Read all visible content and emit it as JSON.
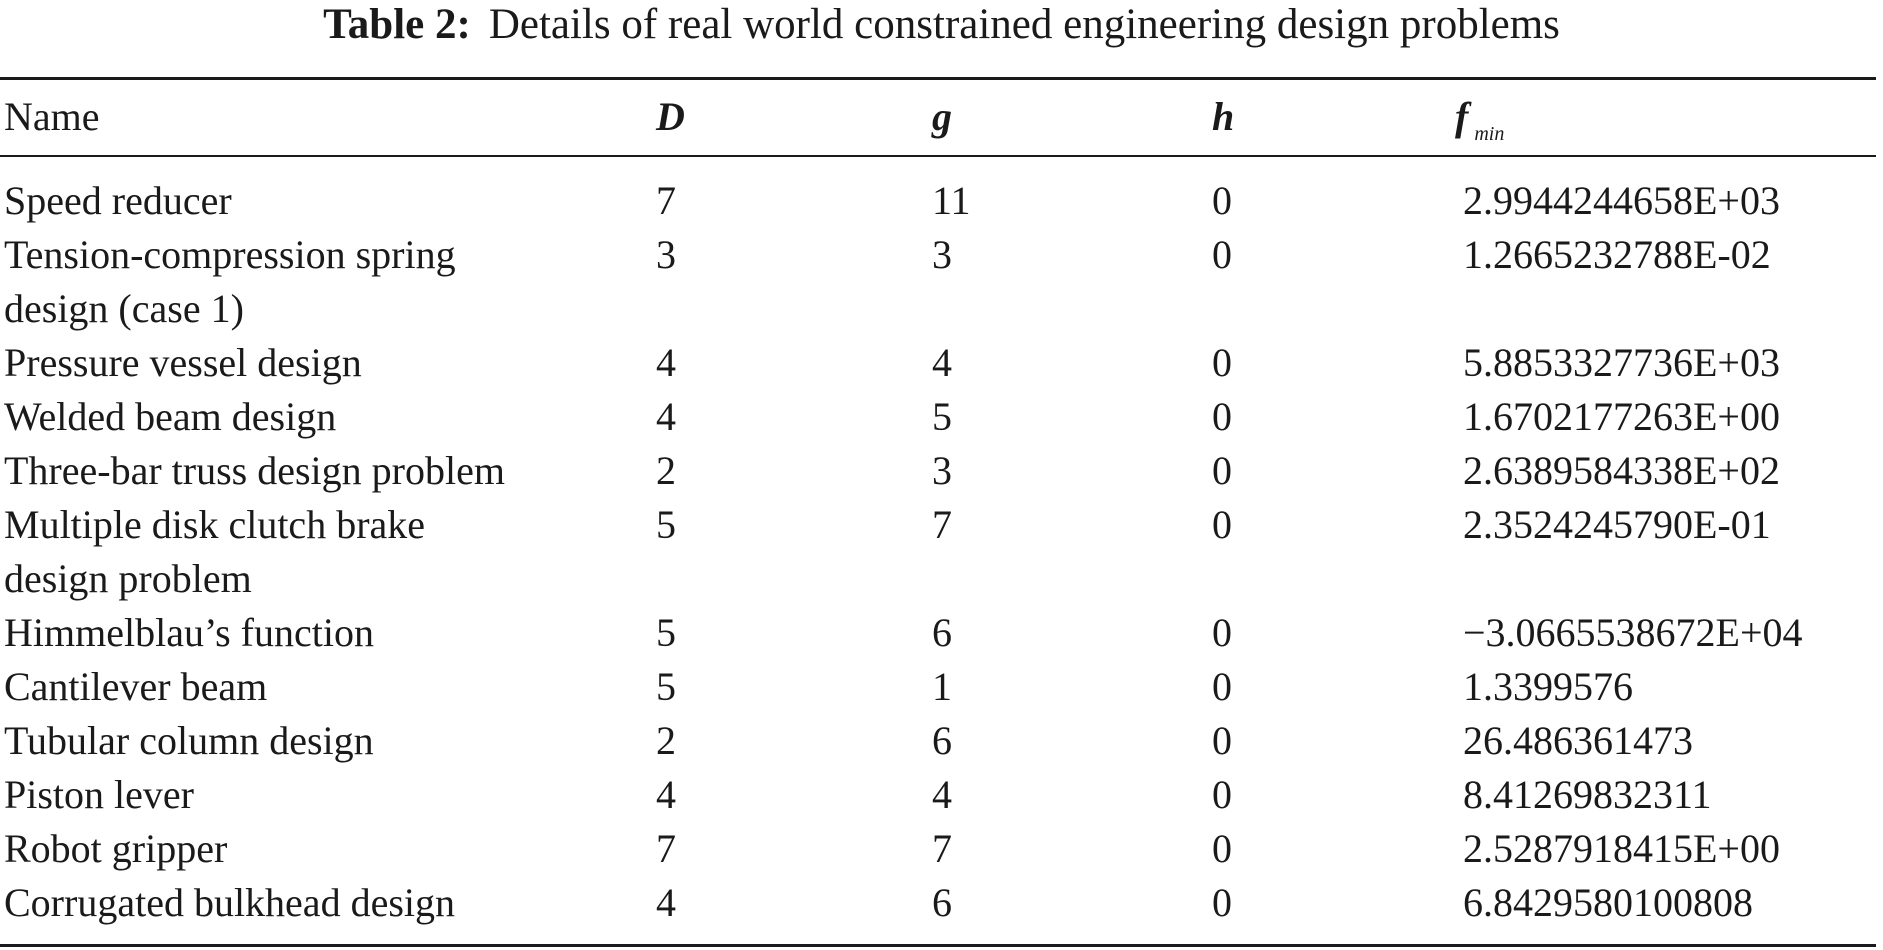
{
  "caption": {
    "label": "Table 2:",
    "text": "Details of real world constrained engineering design problems"
  },
  "table": {
    "headers": {
      "name": "Name",
      "d": "D",
      "g": "g",
      "h": "h",
      "f": "f",
      "f_sub": "min"
    },
    "rows": [
      {
        "name": [
          "Speed reducer"
        ],
        "d": "7",
        "g": "11",
        "h": "0",
        "f": "2.9944244658E+03"
      },
      {
        "name": [
          "Tension-compression spring",
          "design (case 1)"
        ],
        "d": "3",
        "g": "3",
        "h": "0",
        "f": "1.2665232788E-02"
      },
      {
        "name": [
          "Pressure vessel design"
        ],
        "d": "4",
        "g": "4",
        "h": "0",
        "f": "5.8853327736E+03"
      },
      {
        "name": [
          "Welded beam design"
        ],
        "d": "4",
        "g": "5",
        "h": "0",
        "f": "1.6702177263E+00"
      },
      {
        "name": [
          "Three-bar truss design problem"
        ],
        "d": "2",
        "g": "3",
        "h": "0",
        "f": "2.6389584338E+02"
      },
      {
        "name": [
          "Multiple disk clutch brake",
          "design problem"
        ],
        "d": "5",
        "g": "7",
        "h": "0",
        "f": "2.3524245790E-01"
      },
      {
        "name": [
          "Himmelblau’s function"
        ],
        "d": "5",
        "g": "6",
        "h": "0",
        "f": "−3.0665538672E+04"
      },
      {
        "name": [
          "Cantilever beam"
        ],
        "d": "5",
        "g": "1",
        "h": "0",
        "f": "1.3399576"
      },
      {
        "name": [
          "Tubular column design"
        ],
        "d": "2",
        "g": "6",
        "h": "0",
        "f": "26.486361473"
      },
      {
        "name": [
          "Piston lever"
        ],
        "d": "4",
        "g": "4",
        "h": "0",
        "f": "8.41269832311"
      },
      {
        "name": [
          "Robot gripper"
        ],
        "d": "7",
        "g": "7",
        "h": "0",
        "f": "2.5287918415E+00"
      },
      {
        "name": [
          "Corrugated bulkhead design"
        ],
        "d": "4",
        "g": "6",
        "h": "0",
        "f": "6.8429580100808"
      }
    ]
  }
}
